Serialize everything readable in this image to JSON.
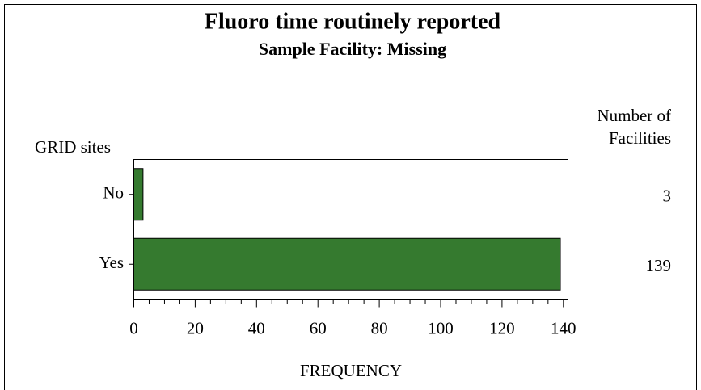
{
  "chart_data": {
    "type": "bar",
    "orientation": "horizontal",
    "title": "Fluoro time routinely reported",
    "subtitle": "Sample Facility: Missing",
    "ylabel": "GRID sites",
    "column_header": [
      "Number of",
      "Facilities"
    ],
    "xlabel": "FREQUENCY",
    "categories": [
      "No",
      "Yes"
    ],
    "values": [
      3,
      139
    ],
    "color": "#357a2f",
    "xlim": [
      0,
      141.5
    ],
    "xticks": [
      0,
      20,
      40,
      60,
      80,
      100,
      120,
      140
    ],
    "xminorticks": [
      5,
      10,
      15,
      25,
      30,
      35,
      45,
      50,
      55,
      65,
      70,
      75,
      85,
      90,
      95,
      105,
      110,
      115,
      125,
      130,
      135
    ],
    "grid": false
  }
}
